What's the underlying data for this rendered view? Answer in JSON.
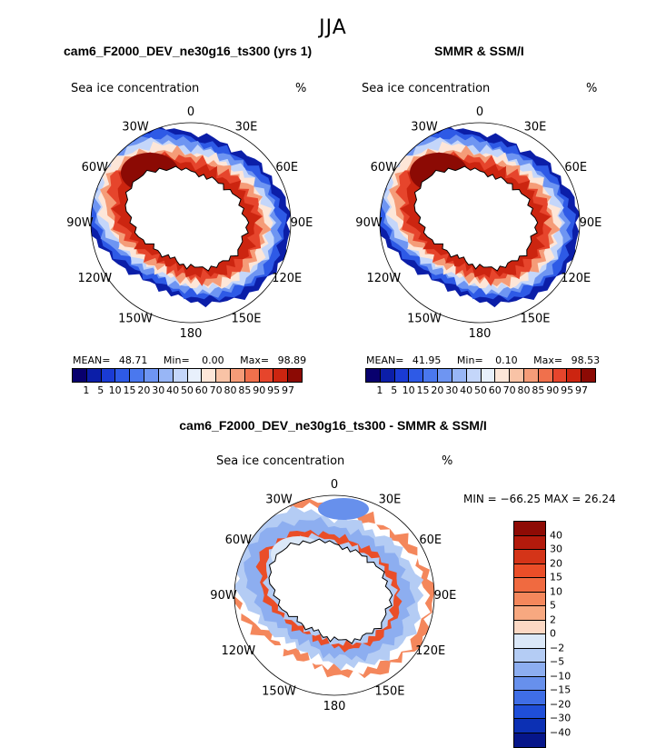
{
  "season": "JJA",
  "panels": [
    {
      "title": "cam6_F2000_DEV_ne30g16_ts300 (yrs 1)",
      "variable": "Sea ice concentration",
      "units": "%",
      "stats": {
        "mean_label": "MEAN=",
        "mean": "48.71",
        "min_label": "Min=",
        "min": "0.00",
        "max_label": "Max=",
        "max": "98.89"
      }
    },
    {
      "title": "SMMR & SSM/I",
      "variable": "Sea ice concentration",
      "units": "%",
      "stats": {
        "mean_label": "MEAN=",
        "mean": "41.95",
        "min_label": "Min=",
        "min": "0.10",
        "max_label": "Max=",
        "max": "98.53"
      }
    },
    {
      "title": "cam6_F2000_DEV_ne30g16_ts300 - SMMR & SSM/I",
      "variable": "Sea ice concentration",
      "units": "%",
      "minmax": "MIN = −66.25 MAX =   26.24"
    }
  ],
  "longitude_labels": [
    "0",
    "30E",
    "60E",
    "90E",
    "120E",
    "150E",
    "180",
    "150W",
    "120W",
    "90W",
    "60W",
    "30W"
  ],
  "concentration_colorbar": {
    "ticks": [
      "1",
      "5",
      "10",
      "15",
      "20",
      "30",
      "40",
      "50",
      "60",
      "70",
      "80",
      "85",
      "90",
      "95",
      "97"
    ],
    "colors": [
      "#08006e",
      "#0b1ea8",
      "#1a3bd4",
      "#2e5ae6",
      "#4a78ee",
      "#6e95f2",
      "#98b6f6",
      "#c4d6fa",
      "#e8f0fc",
      "#fde6d8",
      "#f9c3a6",
      "#f59c78",
      "#f0704c",
      "#e6452c",
      "#cc2510",
      "#8c0a04"
    ]
  },
  "difference_colorbar": {
    "ticks": [
      "40",
      "30",
      "20",
      "15",
      "10",
      "5",
      "2",
      "0",
      "−2",
      "−5",
      "−10",
      "−15",
      "−20",
      "−30",
      "−40"
    ],
    "colors": [
      "#8e0b05",
      "#b31a0c",
      "#d43418",
      "#ea4e28",
      "#f06a40",
      "#f4875c",
      "#f7a880",
      "#fcd8c4",
      "#dbe8f8",
      "#b4ccf4",
      "#8daef0",
      "#6790ec",
      "#3f6ee6",
      "#1f4ed8",
      "#0c30b4",
      "#06168a"
    ]
  }
}
